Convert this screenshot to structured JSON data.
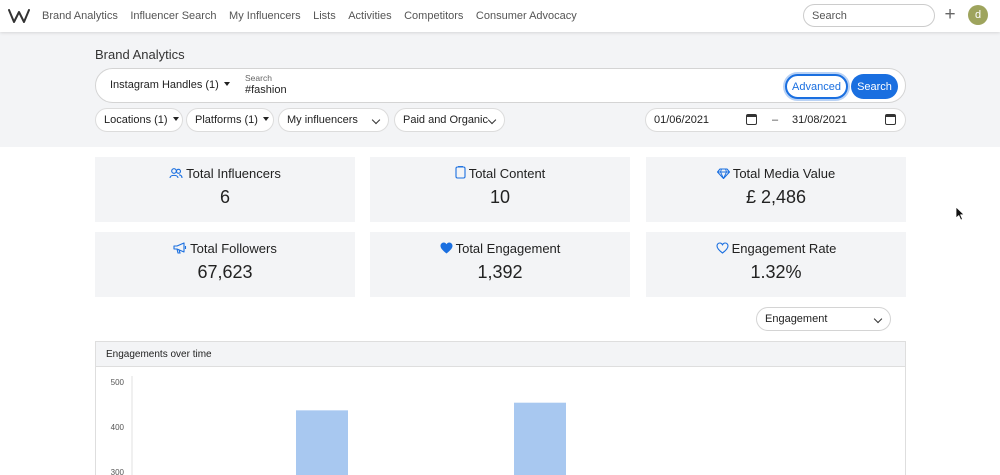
{
  "nav": {
    "links": [
      "Brand Analytics",
      "Influencer Search",
      "My Influencers",
      "Lists",
      "Activities",
      "Competitors",
      "Consumer Advocacy"
    ],
    "search_placeholder": "Search",
    "plus": "+",
    "avatar_letter": "d"
  },
  "page": {
    "title": "Brand Analytics"
  },
  "search_bar": {
    "handles_label": "Instagram Handles (1)",
    "search_label": "Search",
    "search_value": "#fashion",
    "advanced_label": "Advanced",
    "search_button": "Search"
  },
  "filters": {
    "locations": "Locations (1)",
    "platforms": "Platforms (1)",
    "influencers": "My influencers",
    "content_type": "Paid and Organic",
    "date_from": "01/06/2021",
    "date_sep": "–",
    "date_to": "31/08/2021"
  },
  "stats": [
    {
      "label": "Total Influencers",
      "value": "6",
      "icon": "users-icon"
    },
    {
      "label": "Total Content",
      "value": "10",
      "icon": "document-icon"
    },
    {
      "label": "Total Media Value",
      "value": "£ 2,486",
      "icon": "diamond-icon"
    },
    {
      "label": "Total Followers",
      "value": "67,623",
      "icon": "megaphone-icon"
    },
    {
      "label": "Total Engagement",
      "value": "1,392",
      "icon": "heart-filled-icon"
    },
    {
      "label": "Engagement Rate",
      "value": "1.32%",
      "icon": "heart-outline-icon"
    }
  ],
  "metric_select": {
    "value": "Engagement"
  },
  "colors": {
    "accent": "#1a6fe0",
    "bar": "#a8c8f0",
    "panel_bg": "#f3f4f6"
  },
  "chart_data": {
    "type": "bar",
    "title": "Engagements over time",
    "y_ticks": [
      "500",
      "400",
      "300"
    ],
    "ylim_visible": [
      300,
      500
    ],
    "values": [
      437,
      454
    ],
    "note": "x-axis categories not visible in screenshot (chart cut off at bottom)"
  }
}
